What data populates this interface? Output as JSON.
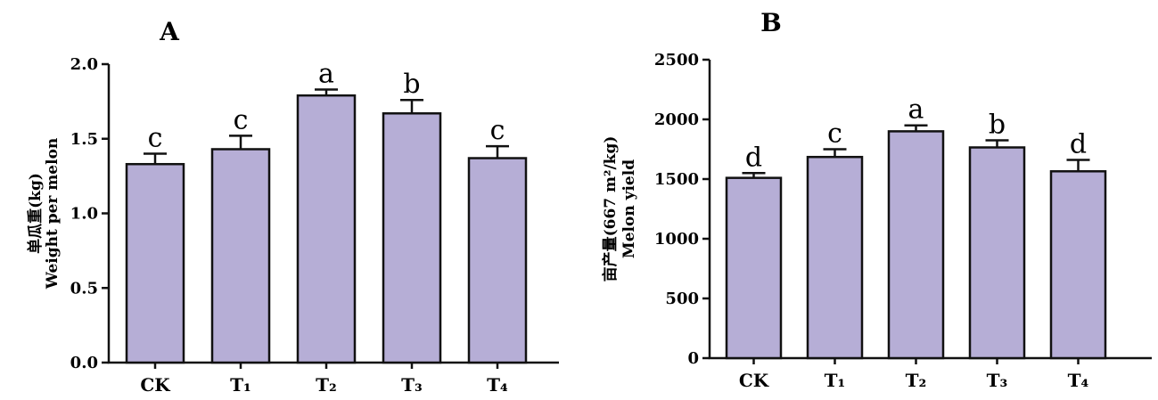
{
  "chart_data": [
    {
      "type": "bar",
      "panel": "A",
      "categories": [
        "CK",
        "T₁",
        "T₂",
        "T₃",
        "T₄"
      ],
      "values": [
        1.33,
        1.43,
        1.79,
        1.67,
        1.37
      ],
      "errors": [
        0.07,
        0.09,
        0.04,
        0.09,
        0.08
      ],
      "significance": [
        "c",
        "c",
        "a",
        "b",
        "c"
      ],
      "ylabel_cn": "单瓜重(kg)",
      "ylabel_en": "Weight per melon",
      "ylim": [
        0,
        2.0
      ],
      "yticks": [
        "0.0",
        "0.5",
        "1.0",
        "1.5",
        "2.0"
      ],
      "ytick_values": [
        0,
        0.5,
        1.0,
        1.5,
        2.0
      ],
      "bar_color": "#b6aed6"
    },
    {
      "type": "bar",
      "panel": "B",
      "categories": [
        "CK",
        "T₁",
        "T₂",
        "T₃",
        "T₄"
      ],
      "values": [
        1510,
        1685,
        1900,
        1765,
        1565
      ],
      "errors": [
        40,
        65,
        50,
        60,
        95
      ],
      "significance": [
        "d",
        "c",
        "a",
        "b",
        "d"
      ],
      "ylabel_cn": "亩产量(667 m²/kg)",
      "ylabel_en": "Melon yield",
      "ylim": [
        0,
        2500
      ],
      "yticks": [
        "0",
        "500",
        "1000",
        "1500",
        "2000",
        "2500"
      ],
      "ytick_values": [
        0,
        500,
        1000,
        1500,
        2000,
        2500
      ],
      "bar_color": "#b6aed6"
    }
  ]
}
